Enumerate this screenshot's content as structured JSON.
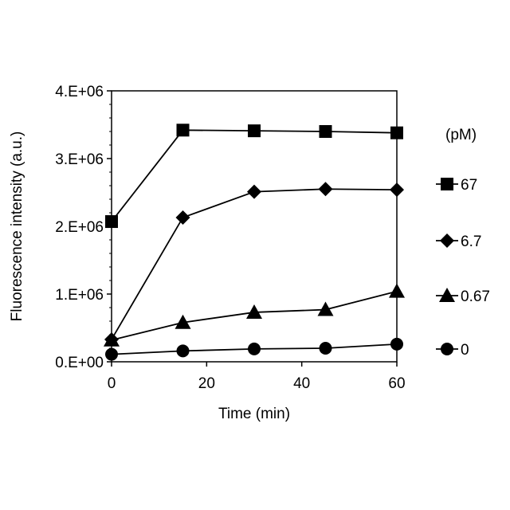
{
  "chart_data": {
    "type": "line",
    "title": "",
    "xlabel": "Time (min)",
    "ylabel": "Fluorescence intensity (a.u.)",
    "xlim": [
      0,
      60
    ],
    "ylim": [
      0,
      4000000
    ],
    "x_ticks": [
      {
        "value": 0,
        "label": "0"
      },
      {
        "value": 20,
        "label": "20"
      },
      {
        "value": 40,
        "label": "40"
      },
      {
        "value": 60,
        "label": "60"
      }
    ],
    "y_ticks": [
      {
        "value": 0,
        "label": "0.E+00"
      },
      {
        "value": 1000000,
        "label": "1.E+06"
      },
      {
        "value": 2000000,
        "label": "2.E+06"
      },
      {
        "value": 3000000,
        "label": "3.E+06"
      },
      {
        "value": 4000000,
        "label": "4.E+06"
      }
    ],
    "grid": false,
    "legend_title": "(pM)",
    "legend_position": "right",
    "x": [
      0,
      15,
      30,
      45,
      60
    ],
    "series": [
      {
        "name": "67",
        "marker": "square",
        "values": [
          2070000,
          3420000,
          3410000,
          3400000,
          3380000
        ]
      },
      {
        "name": "6.7",
        "marker": "diamond",
        "values": [
          330000,
          2130000,
          2510000,
          2550000,
          2540000
        ]
      },
      {
        "name": "0.67",
        "marker": "triangle",
        "values": [
          320000,
          580000,
          730000,
          770000,
          1040000
        ]
      },
      {
        "name": "0",
        "marker": "circle",
        "values": [
          110000,
          160000,
          190000,
          200000,
          260000
        ]
      }
    ]
  }
}
